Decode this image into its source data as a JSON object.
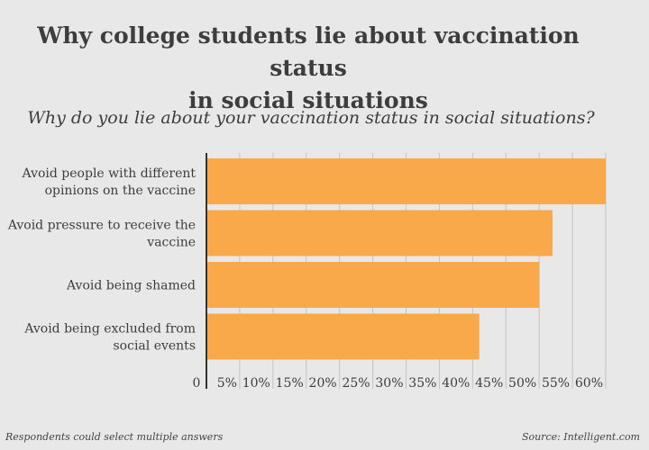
{
  "title_line1": "Why college students lie about vaccination status",
  "title_line2": "in social situations",
  "subtitle": "Why do you lie about your vaccination status in social situations?",
  "footnote": "Respondents could select multiple answers",
  "source": "Source: Intelligent.com",
  "colors": {
    "bar": "#f9a94a",
    "axis": "#333333",
    "grid": "#c4c4c4"
  },
  "chart_data": {
    "type": "bar",
    "orientation": "horizontal",
    "title": "Why college students lie about vaccination status in social situations",
    "subtitle": "Why do you lie about your vaccination status in social situations?",
    "categories": [
      [
        "Avoid people with different",
        "opinions on the vaccine"
      ],
      [
        "Avoid pressure to receive the",
        "vaccine"
      ],
      [
        "Avoid being shamed"
      ],
      [
        "Avoid being excluded from",
        "social events"
      ]
    ],
    "values": [
      60,
      52,
      50,
      41
    ],
    "xlim": [
      0,
      60
    ],
    "ticks": [
      "0",
      "5%",
      "10%",
      "15%",
      "20%",
      "25%",
      "30%",
      "35%",
      "40%",
      "45%",
      "50%",
      "55%",
      "60%"
    ],
    "tick_values": [
      0,
      5,
      10,
      15,
      20,
      25,
      30,
      35,
      40,
      45,
      50,
      55,
      60
    ],
    "grid": true,
    "legend": "none"
  }
}
